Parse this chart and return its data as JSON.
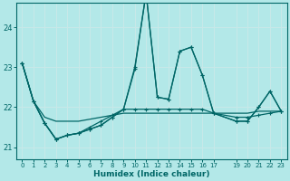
{
  "xlabel": "Humidex (Indice chaleur)",
  "background_color": "#b3e8e8",
  "grid_color": "#d0f0f0",
  "line_color": "#006666",
  "xlim": [
    -0.5,
    23.5
  ],
  "ylim": [
    20.7,
    24.6
  ],
  "yticks": [
    21,
    22,
    23,
    24
  ],
  "xtick_positions": [
    0,
    1,
    2,
    3,
    4,
    5,
    6,
    7,
    8,
    9,
    10,
    11,
    12,
    13,
    14,
    15,
    16,
    17,
    19,
    20,
    21,
    22,
    23
  ],
  "xtick_labels": [
    "0",
    "1",
    "2",
    "3",
    "4",
    "5",
    "6",
    "7",
    "8",
    "9",
    "10",
    "11",
    "12",
    "13",
    "14",
    "15",
    "16",
    "17",
    "19",
    "20",
    "21",
    "22",
    "23"
  ],
  "series": [
    {
      "x": [
        0,
        1,
        2,
        3,
        4,
        5,
        6,
        7,
        8,
        9,
        10,
        11,
        12,
        13,
        14,
        15,
        16,
        17,
        19,
        20,
        21,
        22,
        23
      ],
      "y": [
        23.1,
        22.15,
        21.75,
        21.65,
        21.65,
        21.65,
        21.7,
        21.75,
        21.8,
        21.85,
        21.85,
        21.85,
        21.85,
        21.85,
        21.85,
        21.85,
        21.85,
        21.85,
        21.85,
        21.85,
        21.9,
        21.9,
        21.9
      ],
      "marker": false,
      "lw": 0.9
    },
    {
      "x": [
        0,
        1,
        2,
        3,
        4,
        5,
        6,
        7,
        8,
        9,
        10,
        11,
        12,
        13,
        14,
        15,
        16,
        17,
        19,
        20,
        21,
        22,
        23
      ],
      "y": [
        23.1,
        22.15,
        21.6,
        21.2,
        21.3,
        21.35,
        21.45,
        21.55,
        21.75,
        21.95,
        22.95,
        24.85,
        22.25,
        22.2,
        23.4,
        23.5,
        22.8,
        21.85,
        21.65,
        21.65,
        22.0,
        22.4,
        21.9
      ],
      "marker": true,
      "lw": 0.9
    },
    {
      "x": [
        0,
        1,
        2,
        3,
        4,
        5,
        6,
        7,
        8,
        9,
        10,
        11,
        12,
        13,
        14,
        15,
        16,
        17,
        19,
        20,
        21,
        22,
        23
      ],
      "y": [
        23.1,
        22.15,
        21.6,
        21.2,
        21.3,
        21.35,
        21.45,
        21.55,
        21.75,
        21.95,
        23.0,
        24.85,
        22.25,
        22.2,
        23.4,
        23.5,
        22.8,
        21.85,
        21.65,
        21.65,
        22.0,
        22.4,
        21.9
      ],
      "marker": true,
      "lw": 0.9
    },
    {
      "x": [
        0,
        1,
        2,
        3,
        4,
        5,
        6,
        7,
        8,
        9,
        10,
        11,
        12,
        13,
        14,
        15,
        16,
        17,
        19,
        20,
        21,
        22,
        23
      ],
      "y": [
        23.1,
        22.15,
        21.6,
        21.2,
        21.3,
        21.35,
        21.5,
        21.65,
        21.8,
        21.95,
        21.95,
        21.95,
        21.95,
        21.95,
        21.95,
        21.95,
        21.95,
        21.85,
        21.75,
        21.75,
        21.8,
        21.85,
        21.9
      ],
      "marker": true,
      "lw": 0.9
    }
  ]
}
